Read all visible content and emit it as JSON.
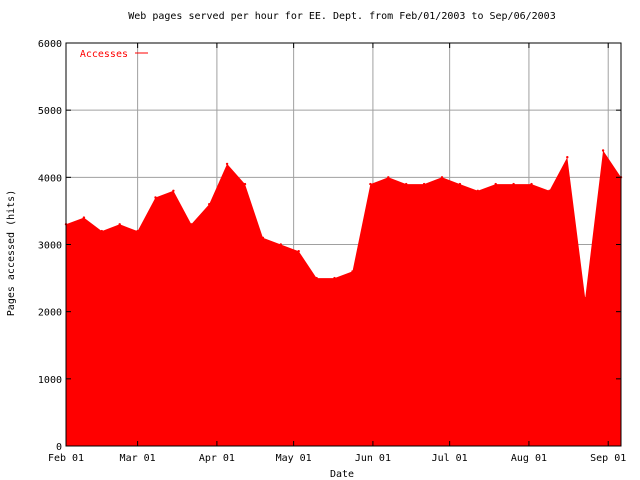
{
  "chart_data": {
    "type": "area",
    "title": "Web pages served per hour for EE. Dept. from Feb/01/2003 to Sep/06/2003",
    "xlabel": "Date",
    "ylabel": "Pages accessed (hits)",
    "ylim": [
      0,
      6000
    ],
    "xlim": [
      "2003-02-01",
      "2003-09-06"
    ],
    "grid": true,
    "legend_position": "top-left",
    "colors": {
      "series": "#ff0000",
      "grid": "#a0a0a0",
      "axis": "#000000"
    },
    "y_ticks": [
      0,
      1000,
      2000,
      3000,
      4000,
      5000,
      6000
    ],
    "x_ticks": [
      {
        "label": "Feb 01",
        "date": "2003-02-01"
      },
      {
        "label": "Mar 01",
        "date": "2003-03-01"
      },
      {
        "label": "Apr 01",
        "date": "2003-04-01"
      },
      {
        "label": "May 01",
        "date": "2003-05-01"
      },
      {
        "label": "Jun 01",
        "date": "2003-06-01"
      },
      {
        "label": "Jul 01",
        "date": "2003-07-01"
      },
      {
        "label": "Aug 01",
        "date": "2003-08-01"
      },
      {
        "label": "Sep 01",
        "date": "2003-09-01"
      }
    ],
    "series": [
      {
        "name": "Accesses",
        "x": [
          "2003-02-01",
          "2003-02-08",
          "2003-02-15",
          "2003-02-22",
          "2003-03-01",
          "2003-03-08",
          "2003-03-15",
          "2003-03-22",
          "2003-03-29",
          "2003-04-05",
          "2003-04-12",
          "2003-04-19",
          "2003-04-26",
          "2003-05-03",
          "2003-05-10",
          "2003-05-17",
          "2003-05-24",
          "2003-05-31",
          "2003-06-07",
          "2003-06-14",
          "2003-06-21",
          "2003-06-28",
          "2003-07-05",
          "2003-07-12",
          "2003-07-19",
          "2003-07-26",
          "2003-08-02",
          "2003-08-09",
          "2003-08-16",
          "2003-08-23",
          "2003-08-30",
          "2003-09-06"
        ],
        "y": [
          3300,
          3400,
          3200,
          3300,
          3200,
          3700,
          3800,
          3300,
          3600,
          4200,
          3900,
          3100,
          3000,
          2900,
          2500,
          2500,
          2600,
          3900,
          4000,
          3900,
          3900,
          4000,
          3900,
          3800,
          3900,
          3900,
          3900,
          3800,
          4300,
          2200,
          4400,
          4000
        ]
      }
    ]
  }
}
